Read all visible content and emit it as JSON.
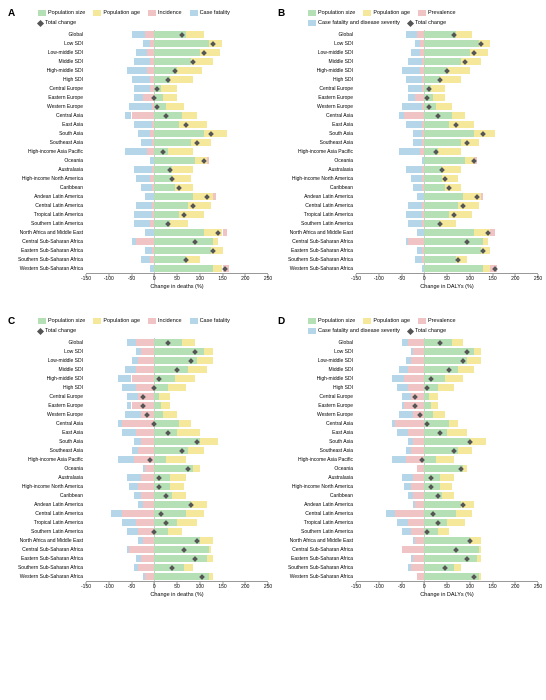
{
  "colors": {
    "population_size": "#b5e0b5",
    "population_age": "#f5e89a",
    "incidence_prevalence": "#f0c4c4",
    "case_fatality": "#b5d5e8",
    "marker": "#555555",
    "grid": "#cccccc",
    "axis": "#999999",
    "background": "#ffffff"
  },
  "xlim": [
    -150,
    250
  ],
  "ticks": [
    -150,
    -100,
    -50,
    0,
    50,
    100,
    150,
    200,
    250
  ],
  "categories": [
    "Global",
    "Low SDI",
    "Low-middle SDI",
    "Middle SDI",
    "High-middle SDI",
    "High SDI",
    "Central Europe",
    "Eastern Europe",
    "Western Europe",
    "Central Asia",
    "East Asia",
    "South Asia",
    "Southeast Asia",
    "High-income Asia Pacific",
    "Oceania",
    "Australasia",
    "High-income North America",
    "Caribbean",
    "Andean Latin America",
    "Central Latin America",
    "Tropical Latin America",
    "Southern Latin America",
    "North Africa and Middle East",
    "Central Sub-Saharan Africa",
    "Eastern Sub-Saharan Africa",
    "Southern Sub-Saharan Africa",
    "Western Sub-Saharan Africa"
  ],
  "panels": [
    {
      "id": "A",
      "xlabel": "Change in deaths (%)",
      "legend": [
        {
          "label": "Population size",
          "color": "#b5e0b5"
        },
        {
          "label": "Population age",
          "color": "#f5e89a"
        },
        {
          "label": "Incidence",
          "color": "#f0c4c4"
        },
        {
          "label": "Case fatality",
          "color": "#b5d5e8"
        },
        {
          "label": "Total change",
          "marker": true
        }
      ],
      "data": [
        {
          "ps": 70,
          "pa": 40,
          "ip": -20,
          "cf": -30,
          "tc": 60
        },
        {
          "ps": 120,
          "pa": 30,
          "ip": -10,
          "cf": -15,
          "tc": 130
        },
        {
          "ps": 100,
          "pa": 45,
          "ip": -15,
          "cf": -25,
          "tc": 110
        },
        {
          "ps": 80,
          "pa": 50,
          "ip": -10,
          "cf": -35,
          "tc": 85
        },
        {
          "ps": 50,
          "pa": 55,
          "ip": -15,
          "cf": -45,
          "tc": 45
        },
        {
          "ps": 35,
          "pa": 50,
          "ip": -10,
          "cf": -40,
          "tc": 30
        },
        {
          "ps": 15,
          "pa": 35,
          "ip": -10,
          "cf": -35,
          "tc": 5
        },
        {
          "ps": 20,
          "pa": 30,
          "ip": -25,
          "cf": -20,
          "tc": 0
        },
        {
          "ps": 25,
          "pa": 40,
          "ip": -5,
          "cf": -50,
          "tc": 5
        },
        {
          "ps": 60,
          "pa": 35,
          "ip": -50,
          "cf": -15,
          "tc": 25
        },
        {
          "ps": 55,
          "pa": 60,
          "ip": -5,
          "cf": -40,
          "tc": 70
        },
        {
          "ps": 110,
          "pa": 50,
          "ip": -10,
          "cf": -25,
          "tc": 125
        },
        {
          "ps": 80,
          "pa": 45,
          "ip": -5,
          "cf": -25,
          "tc": 95
        },
        {
          "ps": 30,
          "pa": 55,
          "ip": -15,
          "cf": -50,
          "tc": 20
        },
        {
          "ps": 90,
          "pa": 25,
          "ip": 5,
          "cf": -10,
          "tc": 110
        },
        {
          "ps": 40,
          "pa": 45,
          "ip": -5,
          "cf": -40,
          "tc": 35
        },
        {
          "ps": 40,
          "pa": 40,
          "ip": -10,
          "cf": -30,
          "tc": 40
        },
        {
          "ps": 45,
          "pa": 40,
          "ip": -5,
          "cf": -25,
          "tc": 55
        },
        {
          "ps": 85,
          "pa": 45,
          "ip": 5,
          "cf": -20,
          "tc": 115
        },
        {
          "ps": 75,
          "pa": 50,
          "ip": -5,
          "cf": -35,
          "tc": 85
        },
        {
          "ps": 55,
          "pa": 55,
          "ip": -5,
          "cf": -40,
          "tc": 65
        },
        {
          "ps": 35,
          "pa": 40,
          "ip": -10,
          "cf": -35,
          "tc": 30
        },
        {
          "ps": 110,
          "pa": 40,
          "ip": 10,
          "cf": -20,
          "tc": 140
        },
        {
          "ps": 130,
          "pa": 10,
          "ip": -40,
          "cf": -10,
          "tc": 90
        },
        {
          "ps": 125,
          "pa": 25,
          "ip": -5,
          "cf": -15,
          "tc": 130
        },
        {
          "ps": 70,
          "pa": 30,
          "ip": -10,
          "cf": -20,
          "tc": 70
        },
        {
          "ps": 130,
          "pa": 20,
          "ip": 15,
          "cf": -10,
          "tc": 155
        }
      ]
    },
    {
      "id": "B",
      "xlabel": "Change in DALYs (%)",
      "legend": [
        {
          "label": "Population size",
          "color": "#b5e0b5"
        },
        {
          "label": "Population age",
          "color": "#f5e89a"
        },
        {
          "label": "Prevalence",
          "color": "#f0c4c4"
        },
        {
          "label": "Case fatality and disease severity",
          "color": "#b5d5e8"
        },
        {
          "label": "Total change",
          "marker": true
        }
      ],
      "data": [
        {
          "ps": 70,
          "pa": 35,
          "ip": -15,
          "cf": -25,
          "tc": 65
        },
        {
          "ps": 120,
          "pa": 25,
          "ip": -10,
          "cf": -10,
          "tc": 125
        },
        {
          "ps": 100,
          "pa": 40,
          "ip": -10,
          "cf": -20,
          "tc": 110
        },
        {
          "ps": 80,
          "pa": 45,
          "ip": -5,
          "cf": -30,
          "tc": 90
        },
        {
          "ps": 50,
          "pa": 50,
          "ip": -10,
          "cf": -40,
          "tc": 50
        },
        {
          "ps": 35,
          "pa": 45,
          "ip": -5,
          "cf": -35,
          "tc": 35
        },
        {
          "ps": 15,
          "pa": 30,
          "ip": -5,
          "cf": -30,
          "tc": 10
        },
        {
          "ps": 20,
          "pa": 25,
          "ip": -20,
          "cf": -15,
          "tc": 5
        },
        {
          "ps": 25,
          "pa": 35,
          "ip": -5,
          "cf": -45,
          "tc": 10
        },
        {
          "ps": 60,
          "pa": 30,
          "ip": -45,
          "cf": -10,
          "tc": 30
        },
        {
          "ps": 55,
          "pa": 55,
          "ip": -5,
          "cf": -35,
          "tc": 70
        },
        {
          "ps": 110,
          "pa": 45,
          "ip": -5,
          "cf": -20,
          "tc": 130
        },
        {
          "ps": 80,
          "pa": 40,
          "ip": -5,
          "cf": -20,
          "tc": 95
        },
        {
          "ps": 30,
          "pa": 50,
          "ip": -10,
          "cf": -45,
          "tc": 25
        },
        {
          "ps": 90,
          "pa": 20,
          "ip": 5,
          "cf": -5,
          "tc": 110
        },
        {
          "ps": 40,
          "pa": 40,
          "ip": -5,
          "cf": -35,
          "tc": 40
        },
        {
          "ps": 40,
          "pa": 35,
          "ip": -5,
          "cf": -25,
          "tc": 45
        },
        {
          "ps": 45,
          "pa": 35,
          "ip": -5,
          "cf": -20,
          "tc": 55
        },
        {
          "ps": 85,
          "pa": 40,
          "ip": 5,
          "cf": -15,
          "tc": 115
        },
        {
          "ps": 75,
          "pa": 45,
          "ip": -5,
          "cf": -30,
          "tc": 85
        },
        {
          "ps": 55,
          "pa": 50,
          "ip": -5,
          "cf": -35,
          "tc": 65
        },
        {
          "ps": 35,
          "pa": 35,
          "ip": -5,
          "cf": -30,
          "tc": 35
        },
        {
          "ps": 110,
          "pa": 35,
          "ip": 10,
          "cf": -15,
          "tc": 140
        },
        {
          "ps": 130,
          "pa": 10,
          "ip": -35,
          "cf": -5,
          "tc": 95
        },
        {
          "ps": 125,
          "pa": 20,
          "ip": -5,
          "cf": -10,
          "tc": 130
        },
        {
          "ps": 70,
          "pa": 25,
          "ip": -5,
          "cf": -15,
          "tc": 75
        },
        {
          "ps": 130,
          "pa": 15,
          "ip": 15,
          "cf": -5,
          "tc": 155
        }
      ]
    },
    {
      "id": "C",
      "xlabel": "Change in deaths (%)",
      "legend": [
        {
          "label": "Population size",
          "color": "#b5e0b5"
        },
        {
          "label": "Population age",
          "color": "#f5e89a"
        },
        {
          "label": "Incidence",
          "color": "#f0c4c4"
        },
        {
          "label": "Case fatality",
          "color": "#b5d5e8"
        },
        {
          "label": "Total change",
          "marker": true
        }
      ],
      "data": [
        {
          "ps": 60,
          "pa": 30,
          "ip": -40,
          "cf": -20,
          "tc": 30
        },
        {
          "ps": 110,
          "pa": 20,
          "ip": -30,
          "cf": -10,
          "tc": 90
        },
        {
          "ps": 95,
          "pa": 35,
          "ip": -35,
          "cf": -15,
          "tc": 80
        },
        {
          "ps": 75,
          "pa": 40,
          "ip": -40,
          "cf": -25,
          "tc": 50
        },
        {
          "ps": 45,
          "pa": 45,
          "ip": -50,
          "cf": -30,
          "tc": 10
        },
        {
          "ps": 30,
          "pa": 40,
          "ip": -40,
          "cf": -30,
          "tc": 0
        },
        {
          "ps": 10,
          "pa": 25,
          "ip": -35,
          "cf": -25,
          "tc": -25
        },
        {
          "ps": 15,
          "pa": 20,
          "ip": -50,
          "cf": -10,
          "tc": -25
        },
        {
          "ps": 20,
          "pa": 30,
          "ip": -30,
          "cf": -35,
          "tc": -15
        },
        {
          "ps": 55,
          "pa": 25,
          "ip": -70,
          "cf": -10,
          "tc": 0
        },
        {
          "ps": 50,
          "pa": 50,
          "ip": -40,
          "cf": -30,
          "tc": 30
        },
        {
          "ps": 100,
          "pa": 40,
          "ip": -30,
          "cf": -15,
          "tc": 95
        },
        {
          "ps": 75,
          "pa": 35,
          "ip": -35,
          "cf": -15,
          "tc": 60
        },
        {
          "ps": 25,
          "pa": 45,
          "ip": -45,
          "cf": -35,
          "tc": -10
        },
        {
          "ps": 85,
          "pa": 15,
          "ip": -20,
          "cf": -5,
          "tc": 75
        },
        {
          "ps": 35,
          "pa": 35,
          "ip": -30,
          "cf": -30,
          "tc": 10
        },
        {
          "ps": 35,
          "pa": 30,
          "ip": -35,
          "cf": -20,
          "tc": 10
        },
        {
          "ps": 40,
          "pa": 30,
          "ip": -30,
          "cf": -15,
          "tc": 25
        },
        {
          "ps": 80,
          "pa": 35,
          "ip": -25,
          "cf": -10,
          "tc": 80
        },
        {
          "ps": 70,
          "pa": 40,
          "ip": -70,
          "cf": -25,
          "tc": 15
        },
        {
          "ps": 50,
          "pa": 45,
          "ip": -40,
          "cf": -30,
          "tc": 25
        },
        {
          "ps": 30,
          "pa": 30,
          "ip": -35,
          "cf": -25,
          "tc": 0
        },
        {
          "ps": 100,
          "pa": 30,
          "ip": -25,
          "cf": -10,
          "tc": 95
        },
        {
          "ps": 120,
          "pa": 5,
          "ip": -55,
          "cf": -5,
          "tc": 65
        },
        {
          "ps": 115,
          "pa": 15,
          "ip": -30,
          "cf": -10,
          "tc": 90
        },
        {
          "ps": 65,
          "pa": 20,
          "ip": -35,
          "cf": -10,
          "tc": 40
        },
        {
          "ps": 120,
          "pa": 10,
          "ip": -20,
          "cf": -5,
          "tc": 105
        }
      ]
    },
    {
      "id": "D",
      "xlabel": "Change in DALYs (%)",
      "legend": [
        {
          "label": "Population size",
          "color": "#b5e0b5"
        },
        {
          "label": "Population age",
          "color": "#f5e89a"
        },
        {
          "label": "Prevalence",
          "color": "#f0c4c4"
        },
        {
          "label": "Case fatality and disease severity",
          "color": "#b5d5e8"
        },
        {
          "label": "Total change",
          "marker": true
        }
      ],
      "data": [
        {
          "ps": 60,
          "pa": 25,
          "ip": -35,
          "cf": -15,
          "tc": 35
        },
        {
          "ps": 110,
          "pa": 15,
          "ip": -25,
          "cf": -5,
          "tc": 95
        },
        {
          "ps": 95,
          "pa": 30,
          "ip": -30,
          "cf": -10,
          "tc": 85
        },
        {
          "ps": 75,
          "pa": 35,
          "ip": -35,
          "cf": -20,
          "tc": 55
        },
        {
          "ps": 45,
          "pa": 40,
          "ip": -45,
          "cf": -25,
          "tc": 15
        },
        {
          "ps": 30,
          "pa": 35,
          "ip": -35,
          "cf": -25,
          "tc": 5
        },
        {
          "ps": 10,
          "pa": 20,
          "ip": -30,
          "cf": -20,
          "tc": -20
        },
        {
          "ps": 15,
          "pa": 15,
          "ip": -45,
          "cf": -5,
          "tc": -20
        },
        {
          "ps": 20,
          "pa": 25,
          "ip": -25,
          "cf": -30,
          "tc": -10
        },
        {
          "ps": 55,
          "pa": 20,
          "ip": -65,
          "cf": -5,
          "tc": 5
        },
        {
          "ps": 50,
          "pa": 45,
          "ip": -35,
          "cf": -25,
          "tc": 35
        },
        {
          "ps": 100,
          "pa": 35,
          "ip": -25,
          "cf": -10,
          "tc": 100
        },
        {
          "ps": 75,
          "pa": 30,
          "ip": -30,
          "cf": -10,
          "tc": 65
        },
        {
          "ps": 25,
          "pa": 40,
          "ip": -40,
          "cf": -30,
          "tc": -5
        },
        {
          "ps": 85,
          "pa": 10,
          "ip": -15,
          "cf": 0,
          "tc": 80
        },
        {
          "ps": 35,
          "pa": 30,
          "ip": -25,
          "cf": -25,
          "tc": 15
        },
        {
          "ps": 35,
          "pa": 25,
          "ip": -30,
          "cf": -15,
          "tc": 15
        },
        {
          "ps": 40,
          "pa": 25,
          "ip": -25,
          "cf": -10,
          "tc": 30
        },
        {
          "ps": 80,
          "pa": 30,
          "ip": -20,
          "cf": -5,
          "tc": 85
        },
        {
          "ps": 70,
          "pa": 35,
          "ip": -65,
          "cf": -20,
          "tc": 20
        },
        {
          "ps": 50,
          "pa": 40,
          "ip": -35,
          "cf": -25,
          "tc": 30
        },
        {
          "ps": 30,
          "pa": 25,
          "ip": -30,
          "cf": -20,
          "tc": 5
        },
        {
          "ps": 100,
          "pa": 25,
          "ip": -20,
          "cf": -5,
          "tc": 100
        },
        {
          "ps": 120,
          "pa": 5,
          "ip": -50,
          "cf": 0,
          "tc": 70
        },
        {
          "ps": 115,
          "pa": 10,
          "ip": -25,
          "cf": -5,
          "tc": 95
        },
        {
          "ps": 65,
          "pa": 15,
          "ip": -30,
          "cf": -5,
          "tc": 45
        },
        {
          "ps": 120,
          "pa": 5,
          "ip": -15,
          "cf": 0,
          "tc": 110
        }
      ]
    }
  ]
}
